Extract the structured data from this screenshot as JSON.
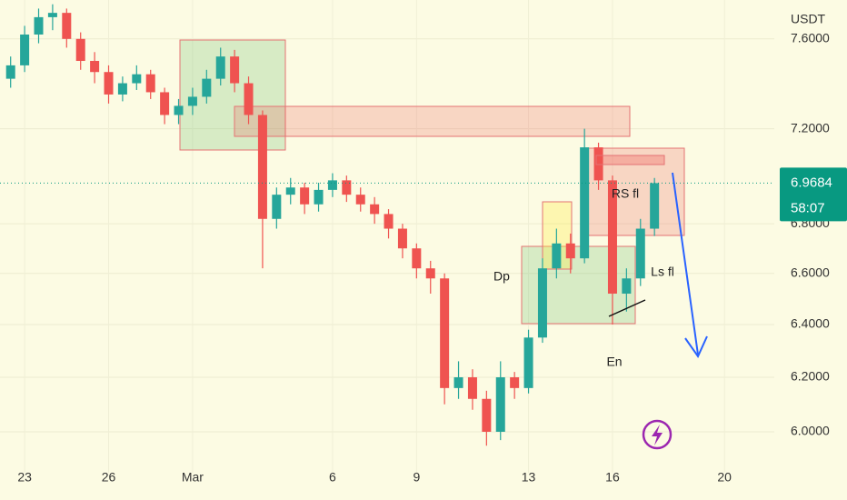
{
  "chart_data": {
    "type": "candlestick",
    "currency": "USDT",
    "log_scale": true,
    "up_color": "#26a69a",
    "down_color": "#ef5350",
    "x": [
      -0.5,
      0,
      0.5,
      1,
      1.5,
      2,
      2.5,
      3,
      3.5,
      4,
      4.5,
      5,
      5.5,
      6,
      6.5,
      7,
      7.5,
      8,
      8.5,
      9,
      9.5,
      10,
      10.5,
      11,
      11.5,
      12,
      12.5,
      13,
      13.5,
      14,
      14.5,
      15,
      15.5,
      16,
      16.5,
      17,
      17.5,
      18,
      18.5,
      19,
      19.5,
      20,
      20.5,
      21,
      21.5,
      22,
      22.5
    ],
    "candles": [
      [
        7.42,
        7.52,
        7.38,
        7.48
      ],
      [
        7.48,
        7.66,
        7.45,
        7.62
      ],
      [
        7.62,
        7.74,
        7.58,
        7.7
      ],
      [
        7.7,
        7.76,
        7.64,
        7.72
      ],
      [
        7.72,
        7.74,
        7.56,
        7.6
      ],
      [
        7.6,
        7.63,
        7.46,
        7.5
      ],
      [
        7.5,
        7.54,
        7.4,
        7.45
      ],
      [
        7.45,
        7.48,
        7.31,
        7.35
      ],
      [
        7.35,
        7.43,
        7.32,
        7.4
      ],
      [
        7.4,
        7.48,
        7.37,
        7.44
      ],
      [
        7.44,
        7.46,
        7.33,
        7.36
      ],
      [
        7.36,
        7.38,
        7.22,
        7.26
      ],
      [
        7.26,
        7.33,
        7.22,
        7.3
      ],
      [
        7.3,
        7.38,
        7.26,
        7.34
      ],
      [
        7.34,
        7.46,
        7.31,
        7.42
      ],
      [
        7.42,
        7.56,
        7.39,
        7.52
      ],
      [
        7.52,
        7.55,
        7.36,
        7.4
      ],
      [
        7.4,
        7.43,
        7.22,
        7.26
      ],
      [
        7.26,
        7.28,
        6.62,
        6.82
      ],
      [
        6.82,
        6.95,
        6.78,
        6.92
      ],
      [
        6.92,
        6.99,
        6.88,
        6.95
      ],
      [
        6.95,
        6.97,
        6.84,
        6.88
      ],
      [
        6.88,
        6.97,
        6.85,
        6.94
      ],
      [
        6.94,
        7.01,
        6.91,
        6.98
      ],
      [
        6.98,
        7.0,
        6.89,
        6.92
      ],
      [
        6.92,
        6.95,
        6.85,
        6.88
      ],
      [
        6.88,
        6.91,
        6.8,
        6.84
      ],
      [
        6.84,
        6.86,
        6.74,
        6.78
      ],
      [
        6.78,
        6.8,
        6.66,
        6.7
      ],
      [
        6.7,
        6.72,
        6.58,
        6.62
      ],
      [
        6.62,
        6.65,
        6.52,
        6.58
      ],
      [
        6.58,
        6.6,
        6.1,
        6.16
      ],
      [
        6.16,
        6.26,
        6.12,
        6.2
      ],
      [
        6.2,
        6.23,
        6.08,
        6.12
      ],
      [
        6.12,
        6.15,
        5.95,
        6.0
      ],
      [
        6.0,
        6.26,
        5.97,
        6.2
      ],
      [
        6.2,
        6.22,
        6.12,
        6.16
      ],
      [
        6.16,
        6.38,
        6.14,
        6.35
      ],
      [
        6.35,
        6.66,
        6.33,
        6.62
      ],
      [
        6.62,
        6.78,
        6.58,
        6.72
      ],
      [
        6.72,
        6.76,
        6.6,
        6.66
      ],
      [
        6.66,
        7.2,
        6.64,
        7.12
      ],
      [
        7.12,
        7.14,
        6.94,
        6.98
      ],
      [
        6.98,
        7.0,
        6.4,
        6.52
      ],
      [
        6.52,
        6.62,
        6.45,
        6.58
      ],
      [
        6.58,
        6.82,
        6.55,
        6.78
      ],
      [
        6.78,
        6.99,
        6.75,
        6.9684
      ]
    ],
    "xlim": [
      -0.88,
      26.78
    ],
    "xticks": [
      {
        "value": 0,
        "label": "23"
      },
      {
        "value": 3,
        "label": "26"
      },
      {
        "value": 6,
        "label": "Mar"
      },
      {
        "value": 11,
        "label": "6"
      },
      {
        "value": 14,
        "label": "9"
      },
      {
        "value": 18,
        "label": "13"
      },
      {
        "value": 21,
        "label": "16"
      },
      {
        "value": 25,
        "label": "20"
      }
    ],
    "ylim": [
      5.854,
      7.78
    ],
    "yticks": [
      {
        "value": 6,
        "label": "6.0000"
      },
      {
        "value": 6.2,
        "label": "6.2000"
      },
      {
        "value": 6.4,
        "label": "6.4000"
      },
      {
        "value": 6.6,
        "label": "6.6000"
      },
      {
        "value": 6.8,
        "label": "6.8000"
      },
      {
        "value": 7.2,
        "label": "7.2000"
      },
      {
        "value": 7.6,
        "label": "7.6000"
      }
    ],
    "last_price": 6.9684,
    "last_price_color": "#089981",
    "countdown": "58:07",
    "annotations": [
      "Dp",
      "RS fl",
      "Ls fl",
      "En"
    ]
  }
}
